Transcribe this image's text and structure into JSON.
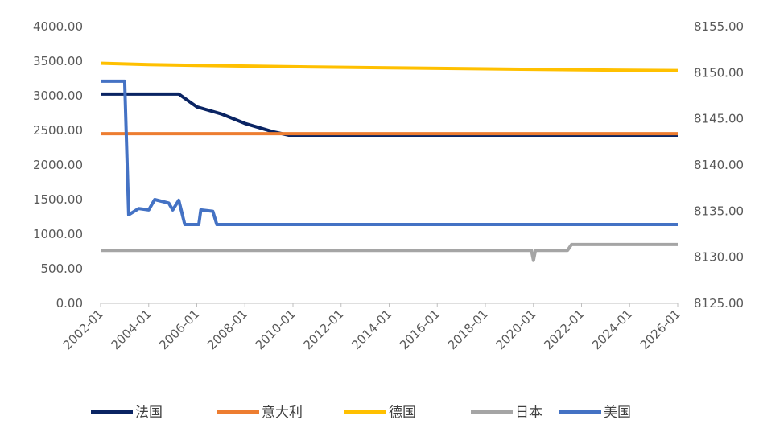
{
  "chart_data": {
    "type": "line",
    "title": "",
    "xlabel": "",
    "ylabel": "",
    "y_left_ticks": [
      "0.00",
      "500.00",
      "1000.00",
      "1500.00",
      "2000.00",
      "2500.00",
      "3000.00",
      "3500.00",
      "4000.00"
    ],
    "y_left_lim": [
      0,
      4000
    ],
    "y_right_ticks": [
      "8125.00",
      "8130.00",
      "8135.00",
      "8140.00",
      "8145.00",
      "8150.00",
      "8155.00"
    ],
    "y_right_lim": [
      8125,
      8155
    ],
    "x_ticks": [
      "2002-01",
      "2004-01",
      "2006-01",
      "2008-01",
      "2010-01",
      "2012-01",
      "2014-01",
      "2016-01",
      "2018-01",
      "2020-01",
      "2022-01",
      "2024-01",
      "2026-01"
    ],
    "x_lim": [
      "2002-01",
      "2026-01"
    ],
    "grid": false,
    "legend_position": "bottom",
    "series": [
      {
        "name": "法国",
        "color": "#0a2463",
        "axis": "left",
        "points": [
          [
            "2002-01",
            3025
          ],
          [
            "2005-04",
            3025
          ],
          [
            "2006-01",
            2840
          ],
          [
            "2007-01",
            2740
          ],
          [
            "2008-01",
            2600
          ],
          [
            "2009-03",
            2480
          ],
          [
            "2009-11",
            2430
          ],
          [
            "2026-01",
            2430
          ]
        ]
      },
      {
        "name": "意大利",
        "color": "#ed7d31",
        "axis": "left",
        "points": [
          [
            "2002-01",
            2452
          ],
          [
            "2026-01",
            2452
          ]
        ]
      },
      {
        "name": "德国",
        "color": "#ffc000",
        "axis": "left",
        "points": [
          [
            "2002-01",
            3470
          ],
          [
            "2004-01",
            3450
          ],
          [
            "2006-01",
            3440
          ],
          [
            "2010-01",
            3420
          ],
          [
            "2014-01",
            3405
          ],
          [
            "2018-01",
            3390
          ],
          [
            "2022-01",
            3375
          ],
          [
            "2026-01",
            3365
          ]
        ]
      },
      {
        "name": "日本",
        "color": "#a5a5a5",
        "axis": "left",
        "points": [
          [
            "2002-01",
            765
          ],
          [
            "2019-12",
            765
          ],
          [
            "2020-01",
            620
          ],
          [
            "2020-02",
            765
          ],
          [
            "2021-06",
            765
          ],
          [
            "2021-08",
            850
          ],
          [
            "2026-01",
            850
          ]
        ]
      },
      {
        "name": "美国",
        "color": "#4472c4",
        "axis": "left",
        "points": [
          [
            "2002-01",
            3210
          ],
          [
            "2003-01",
            3210
          ],
          [
            "2003-03",
            1280
          ],
          [
            "2003-08",
            1370
          ],
          [
            "2004-01",
            1350
          ],
          [
            "2004-04",
            1500
          ],
          [
            "2004-11",
            1450
          ],
          [
            "2005-01",
            1350
          ],
          [
            "2005-04",
            1490
          ],
          [
            "2005-07",
            1140
          ],
          [
            "2006-02",
            1140
          ],
          [
            "2006-03",
            1350
          ],
          [
            "2006-09",
            1330
          ],
          [
            "2006-11",
            1140
          ],
          [
            "2026-01",
            1140
          ]
        ]
      }
    ]
  }
}
